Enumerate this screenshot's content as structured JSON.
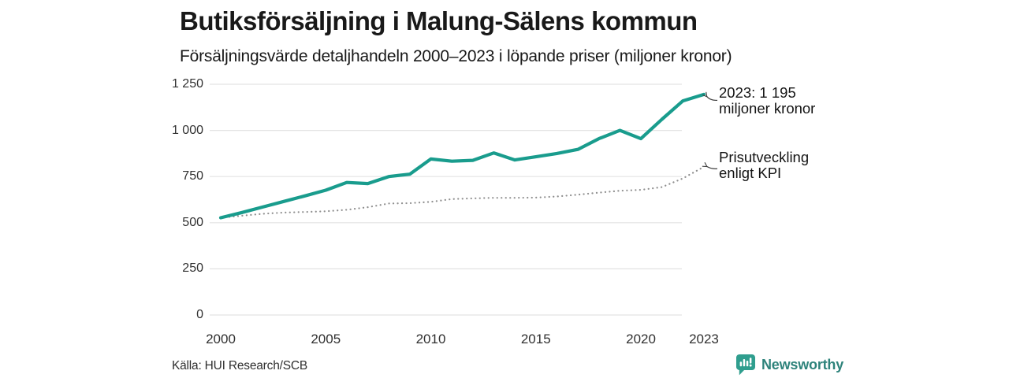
{
  "header": {
    "title": "Butiksförsäljning i Malung-Sälens kommun",
    "subtitle": "Försäljningsvärde detaljhandeln 2000–2023 i löpande priser (miljoner kronor)"
  },
  "chart_data": {
    "type": "line",
    "title": "Butiksförsäljning i Malung-Sälens kommun",
    "subtitle": "Försäljningsvärde detaljhandeln 2000–2023 i löpande priser (miljoner kronor)",
    "x": [
      2000,
      2001,
      2002,
      2003,
      2004,
      2005,
      2006,
      2007,
      2008,
      2009,
      2010,
      2011,
      2012,
      2013,
      2014,
      2015,
      2016,
      2017,
      2018,
      2019,
      2020,
      2021,
      2022,
      2023
    ],
    "series": [
      {
        "name": "Försäljningsvärde detaljhandeln (löpande priser)",
        "style": "solid",
        "color": "#199c8d",
        "values": [
          527,
          555,
          585,
          615,
          645,
          676,
          718,
          712,
          750,
          763,
          845,
          833,
          838,
          878,
          840,
          857,
          875,
          897,
          955,
          1000,
          955,
          1060,
          1160,
          1195
        ]
      },
      {
        "name": "Prisutveckling enligt KPI",
        "style": "dotted",
        "color": "#8f8f8f",
        "values": [
          527,
          538,
          548,
          555,
          558,
          562,
          570,
          584,
          604,
          606,
          613,
          628,
          632,
          635,
          635,
          636,
          642,
          652,
          663,
          673,
          678,
          693,
          740,
          803
        ]
      }
    ],
    "ylim": [
      0,
      1250
    ],
    "yticks": [
      0,
      250,
      500,
      750,
      1000,
      1250
    ],
    "ytick_labels": [
      "0",
      "250",
      "500",
      "750",
      "1 000",
      "1 250"
    ],
    "xticks": [
      2000,
      2005,
      2010,
      2015,
      2020,
      2023
    ],
    "grid": "horizontal",
    "legend_position": "none",
    "annotations": [
      {
        "lines": [
          "2023: 1 195",
          "miljoner kronor"
        ],
        "series": 0
      },
      {
        "lines": [
          "Prisutveckling",
          "enligt KPI"
        ],
        "series": 1
      }
    ]
  },
  "footer": {
    "source": "Källa: HUI Research/SCB",
    "brand": "Newsworthy"
  },
  "colors": {
    "accent": "#199c8d",
    "kpi_line": "#8f8f8f",
    "grid": "#e3e3e3",
    "arrow": "#3d3d3d",
    "brand_text": "#2e837b",
    "brand_icon": "#2f9e8e"
  }
}
